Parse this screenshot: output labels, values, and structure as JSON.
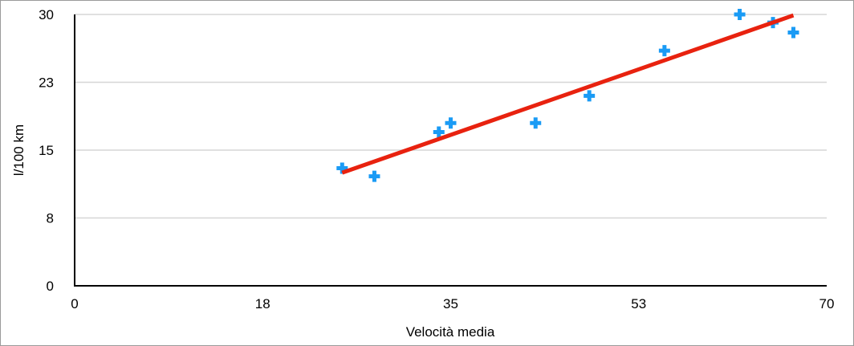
{
  "chart_data": {
    "type": "scatter",
    "title": "",
    "xlabel": "Velocità media",
    "ylabel": "l/100 km",
    "xlim": [
      0,
      70
    ],
    "ylim": [
      0,
      30
    ],
    "x_ticks": [
      0,
      17.5,
      35,
      52.5,
      70
    ],
    "x_tick_labels": [
      "0",
      "18",
      "35",
      "53",
      "70"
    ],
    "y_ticks": [
      0,
      7.5,
      15,
      22.5,
      30
    ],
    "y_tick_labels": [
      "0",
      "8",
      "15",
      "23",
      "30"
    ],
    "grid": "horizontal",
    "marker": "plus",
    "series": [
      {
        "color": "#1a9bf5",
        "points": [
          {
            "x": 24.9,
            "y": 13.0
          },
          {
            "x": 27.9,
            "y": 12.1
          },
          {
            "x": 33.9,
            "y": 17.0
          },
          {
            "x": 35.0,
            "y": 18.0
          },
          {
            "x": 42.9,
            "y": 18.0
          },
          {
            "x": 47.9,
            "y": 21.0
          },
          {
            "x": 54.9,
            "y": 26.0
          },
          {
            "x": 61.9,
            "y": 30.0
          },
          {
            "x": 65.0,
            "y": 29.1
          },
          {
            "x": 66.9,
            "y": 28.0
          }
        ]
      }
    ],
    "trendline": {
      "type": "linear",
      "color": "#e8220f",
      "start": {
        "x": 24.9,
        "y": 12.5
      },
      "end": {
        "x": 66.9,
        "y": 29.9
      }
    }
  }
}
